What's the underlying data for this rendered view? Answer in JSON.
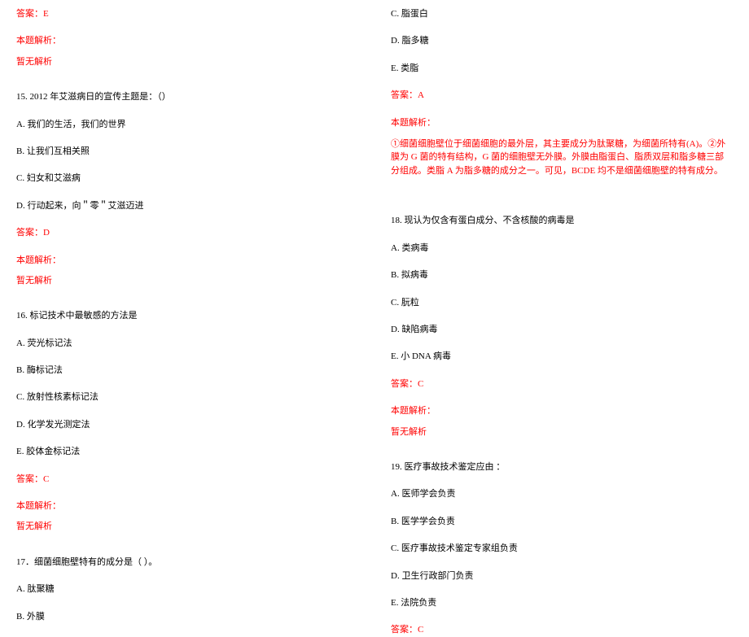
{
  "colors": {
    "text": "#000000",
    "red": "#ff0000",
    "background": "#ffffff"
  },
  "typography": {
    "fontSize": 11,
    "fontFamily": "SimSun",
    "lineHeight": 1.4
  },
  "left": {
    "answer_prev": "答案：E",
    "explain_label": "本题解析：",
    "no_explain": "暂无解析",
    "q15": {
      "stem": "15. 2012 年艾滋病日的宣传主题是：（）",
      "a": "A. 我们的生活，我们的世界",
      "b": "B. 让我们互相关照",
      "c": "C. 妇女和艾滋病",
      "d": "D. 行动起来，向＂零＂艾滋迈进",
      "answer": "答案：D",
      "explain_label": "本题解析：",
      "no_explain": "暂无解析"
    },
    "q16": {
      "stem": "16. 标记技术中最敏感的方法是",
      "a": "A. 荧光标记法",
      "b": "B. 酶标记法",
      "c": "C. 放射性核素标记法",
      "d": "D. 化学发光测定法",
      "e": "E. 胶体金标记法",
      "answer": "答案：C",
      "explain_label": "本题解析：",
      "no_explain": "暂无解析"
    },
    "q17": {
      "stem": "17．细菌细胞壁特有的成分是（  ）。",
      "a": "A. 肽聚糖",
      "b": "B. 外膜"
    }
  },
  "right": {
    "q17_cont": {
      "c": "C. 脂蛋白",
      "d": "D. 脂多糖",
      "e": "E. 类脂",
      "answer": "答案：A",
      "explain_label": "本题解析：",
      "explain_text": "①细菌细胞壁位于细菌细胞的最外层，其主要成分为肽聚糖，为细菌所特有(A)。②外膜为 G 菌的特有结构，G 菌的细胞壁无外膜。外膜由脂蛋白、脂质双层和脂多糖三部分组成。类脂 A 为脂多糖的成分之一。可见，BCDE 均不是细菌细胞壁的特有成分。"
    },
    "q18": {
      "stem": "18. 现认为仅含有蛋白成分、不含核酸的病毒是",
      "a": "A. 类病毒",
      "b": "B. 拟病毒",
      "c": "C. 朊粒",
      "d": "D. 缺陷病毒",
      "e": "E. 小 DNA 病毒",
      "answer": "答案：C",
      "explain_label": "本题解析：",
      "no_explain": "暂无解析"
    },
    "q19": {
      "stem": "19. 医疗事故技术鉴定应由  ：",
      "a": "A. 医师学会负责",
      "b": "B. 医学学会负责",
      "c": "C. 医疗事故技术鉴定专家组负责",
      "d": "D. 卫生行政部门负责",
      "e": "E. 法院负责",
      "answer": "答案：C"
    }
  }
}
